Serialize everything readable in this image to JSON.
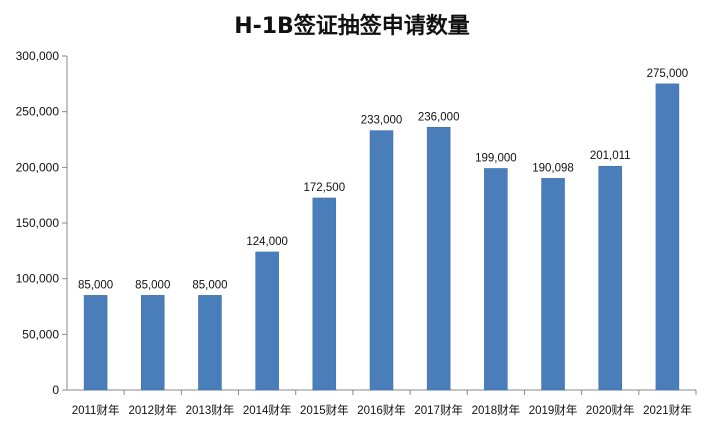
{
  "chart_data": {
    "type": "bar",
    "title": "H-1B签证抽签申请数量",
    "xlabel": "",
    "ylabel": "",
    "categories": [
      "2011财年",
      "2012财年",
      "2013财年",
      "2014财年",
      "2015财年",
      "2016财年",
      "2017财年",
      "2018财年",
      "2019财年",
      "2020财年",
      "2021财年"
    ],
    "values": [
      85000,
      85000,
      85000,
      124000,
      172500,
      233000,
      236000,
      199000,
      190098,
      201011,
      275000
    ],
    "data_labels": [
      "85,000",
      "85,000",
      "85,000",
      "124,000",
      "172,500",
      "233,000",
      "236,000",
      "199,000",
      "190,098",
      "201,011",
      "275,000"
    ],
    "ylim": [
      0,
      300000
    ],
    "yticks": [
      "0",
      "50,000",
      "100,000",
      "150,000",
      "200,000",
      "250,000",
      "300,000"
    ],
    "grid": false,
    "legend": "none",
    "bar_color": "#4a7ebb",
    "bar_edge_color": "#3b6aa3"
  }
}
